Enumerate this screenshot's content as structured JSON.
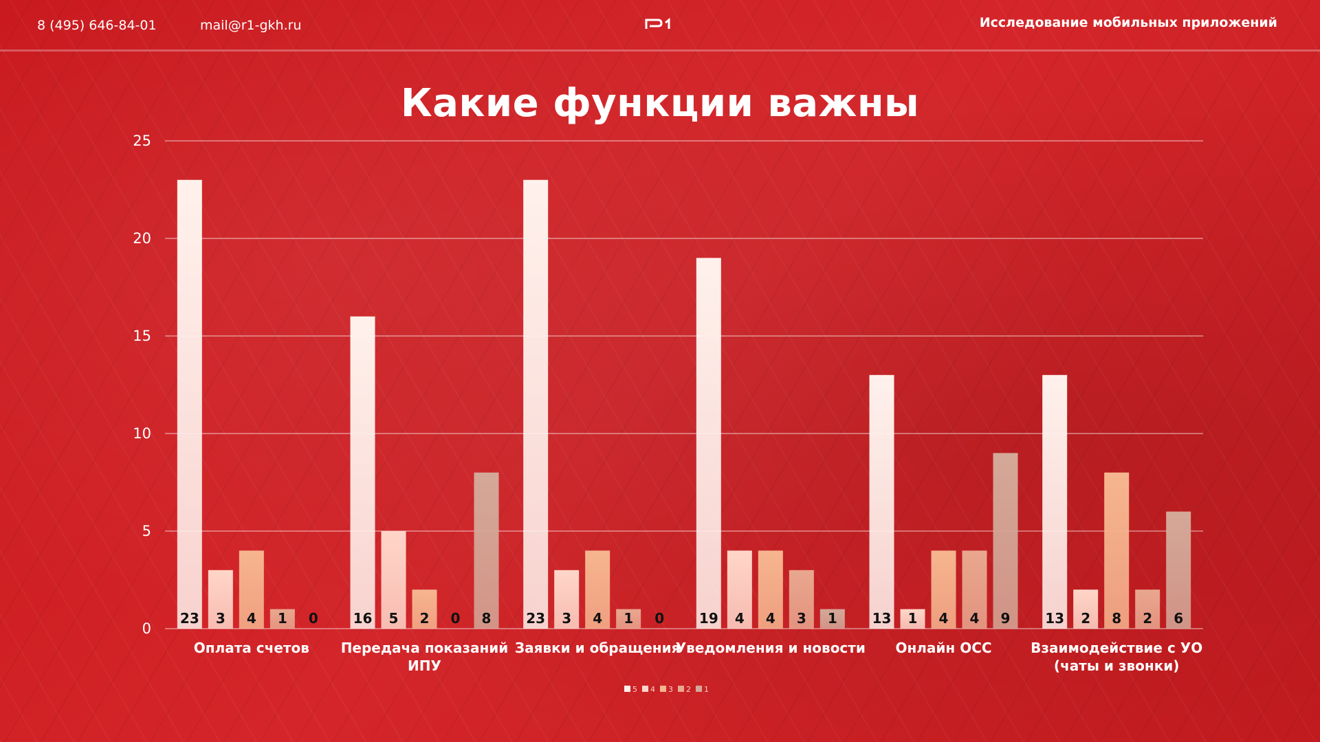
{
  "header": {
    "phone": "8 (495) 646-84-01",
    "email": "mail@r1-gkh.ru",
    "right_title": "Исследование мобильных приложений"
  },
  "icons": {
    "logo": "r1-logo-icon"
  },
  "colors": {
    "background": "#cf1f22",
    "series": [
      "#fff1ec",
      "#ffd6c9",
      "#f6b58f",
      "#e9a78f",
      "#d4a898"
    ]
  },
  "chart_data": {
    "type": "bar",
    "title": "Какие функции важны",
    "categories": [
      [
        "Оплата счетов"
      ],
      [
        "Передача показаний",
        "ИПУ"
      ],
      [
        "Заявки и обращения"
      ],
      [
        "Уведомления и новости"
      ],
      [
        "Онлайн ОСС"
      ],
      [
        "Взаимодействие с УО",
        "(чаты и звонки)"
      ]
    ],
    "series": [
      {
        "name": "5",
        "values": [
          23,
          16,
          23,
          19,
          13,
          13
        ]
      },
      {
        "name": "4",
        "values": [
          3,
          5,
          3,
          4,
          1,
          2
        ]
      },
      {
        "name": "3",
        "values": [
          4,
          2,
          4,
          4,
          4,
          8
        ]
      },
      {
        "name": "2",
        "values": [
          1,
          0,
          1,
          3,
          4,
          2
        ]
      },
      {
        "name": "1",
        "values": [
          0,
          8,
          0,
          1,
          9,
          6
        ]
      }
    ],
    "ylim": [
      0,
      25
    ],
    "yticks": [
      0,
      5,
      10,
      15,
      20,
      25
    ],
    "grid": true,
    "data_labels": true,
    "legend_position": "bottom"
  }
}
